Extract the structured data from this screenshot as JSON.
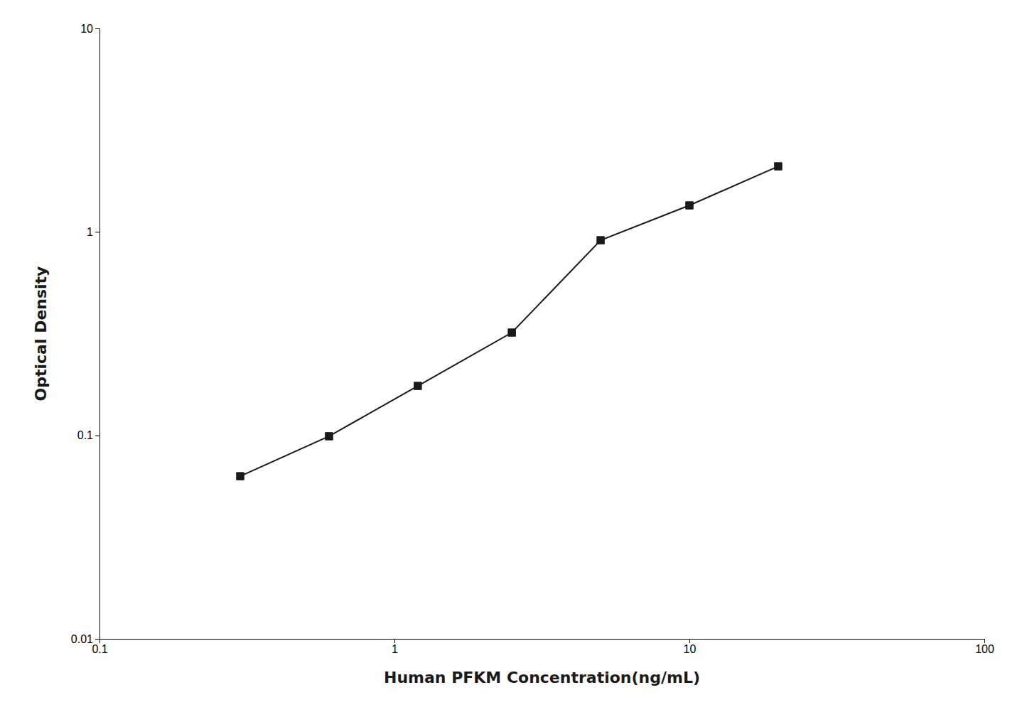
{
  "chart_data": {
    "type": "line",
    "xlabel": "Human PFKM Concentration(ng/mL)",
    "ylabel": "Optical Density",
    "x": [
      0.3,
      0.6,
      1.2,
      2.5,
      5.0,
      10.0,
      20.0
    ],
    "values": [
      0.063,
      0.099,
      0.175,
      0.32,
      0.91,
      1.35,
      2.1
    ],
    "color": "#1a1a1a",
    "marker": "square",
    "log": true,
    "xlim": [
      0.1,
      100
    ],
    "ylim": [
      0.01,
      10
    ],
    "xticks": [
      0.1,
      1,
      10,
      100
    ],
    "yticks": [
      0.01,
      0.1,
      1,
      10
    ],
    "grid": false
  }
}
